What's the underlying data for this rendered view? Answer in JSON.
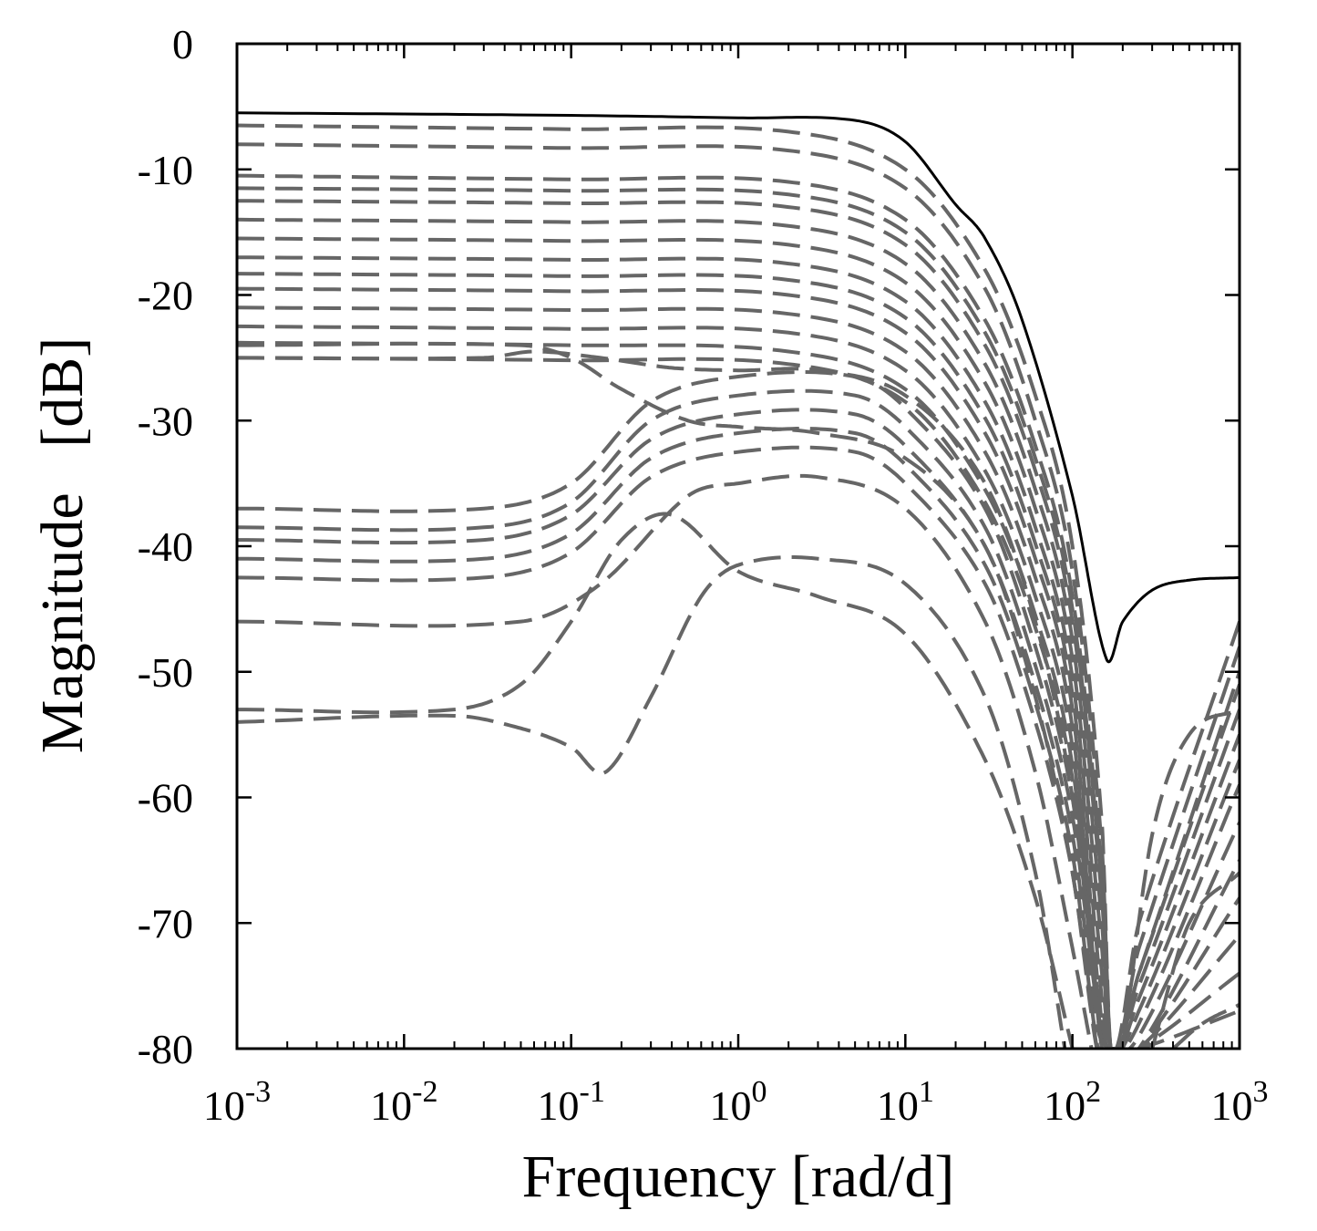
{
  "chart_data": {
    "type": "line",
    "title": "",
    "xlabel": "Frequency [rad/d]",
    "ylabel": "Magnitude   [dB]",
    "x_scale": "log",
    "xlim": [
      0.001,
      1000
    ],
    "ylim": [
      -80,
      0
    ],
    "grid": false,
    "legend": "none",
    "x_ticks": [
      {
        "value": 0.001,
        "base": "10",
        "exp": "-3"
      },
      {
        "value": 0.01,
        "base": "10",
        "exp": "-2"
      },
      {
        "value": 0.1,
        "base": "10",
        "exp": "-1"
      },
      {
        "value": 1,
        "base": "10",
        "exp": "0"
      },
      {
        "value": 10,
        "base": "10",
        "exp": "1"
      },
      {
        "value": 100,
        "base": "10",
        "exp": "2"
      },
      {
        "value": 1000,
        "base": "10",
        "exp": "3"
      }
    ],
    "y_ticks": [
      {
        "value": 0,
        "label": "0"
      },
      {
        "value": -10,
        "label": "-10"
      },
      {
        "value": -20,
        "label": "-20"
      },
      {
        "value": -30,
        "label": "-30"
      },
      {
        "value": -40,
        "label": "-40"
      },
      {
        "value": -50,
        "label": "-50"
      },
      {
        "value": -60,
        "label": "-60"
      },
      {
        "value": -70,
        "label": "-70"
      },
      {
        "value": -80,
        "label": "-80"
      }
    ],
    "colors": {
      "envelope": "#000000",
      "curves": "#666666"
    },
    "envelope": {
      "style": "solid",
      "points": [
        [
          0.001,
          -5.5
        ],
        [
          0.1,
          -5.7
        ],
        [
          1,
          -5.9
        ],
        [
          5,
          -6.1
        ],
        [
          10,
          -7.8
        ],
        [
          20,
          -12.8
        ],
        [
          30,
          -15.5
        ],
        [
          50,
          -22
        ],
        [
          100,
          -36
        ],
        [
          160,
          -49
        ],
        [
          200,
          -46
        ],
        [
          300,
          -43.5
        ],
        [
          500,
          -42.7
        ],
        [
          1000,
          -42.5
        ]
      ]
    },
    "series": [
      {
        "x": [
          0.001,
          0.1,
          2,
          10,
          30,
          60,
          100,
          150,
          170,
          250,
          1000
        ],
        "y": [
          -6.5,
          -6.8,
          -7,
          -10,
          -18,
          -28,
          -40,
          -62,
          -80,
          -70,
          -46
        ],
        "style": "dashed"
      },
      {
        "x": [
          0.001,
          0.1,
          2,
          10,
          30,
          60,
          100,
          150,
          170,
          250,
          1000
        ],
        "y": [
          -8,
          -8.3,
          -8.5,
          -11.5,
          -19.5,
          -30,
          -42,
          -64,
          -80,
          -72,
          -48
        ],
        "style": "dashed"
      },
      {
        "x": [
          0.001,
          0.1,
          2,
          10,
          30,
          60,
          100,
          150,
          170,
          250,
          1000
        ],
        "y": [
          -10.5,
          -10.8,
          -11,
          -14,
          -22,
          -32,
          -44,
          -66,
          -80,
          -74,
          -50
        ],
        "style": "dashed"
      },
      {
        "x": [
          0.001,
          0.1,
          2,
          10,
          30,
          60,
          100,
          150,
          170,
          250,
          1000
        ],
        "y": [
          -11.5,
          -11.7,
          -12,
          -15,
          -23,
          -33,
          -45,
          -67,
          -80,
          -74,
          -51
        ],
        "style": "dashed"
      },
      {
        "x": [
          0.001,
          0.1,
          2,
          10,
          30,
          60,
          100,
          150,
          170,
          250,
          1000
        ],
        "y": [
          -12.5,
          -12.7,
          -13,
          -16,
          -24,
          -34,
          -46,
          -68,
          -80,
          -75,
          -53
        ],
        "style": "dashed"
      },
      {
        "x": [
          0.001,
          0.1,
          2,
          10,
          30,
          60,
          100,
          150,
          170,
          250,
          1000
        ],
        "y": [
          -14,
          -14.2,
          -14.5,
          -17.5,
          -25.5,
          -35.5,
          -47.5,
          -70,
          -80,
          -76,
          -55
        ],
        "style": "dashed"
      },
      {
        "x": [
          0.001,
          0.1,
          2,
          10,
          30,
          60,
          100,
          150,
          170,
          250,
          1000
        ],
        "y": [
          -15.5,
          -15.7,
          -16,
          -19,
          -27,
          -37,
          -49,
          -72,
          -80,
          -77,
          -57
        ],
        "style": "dashed"
      },
      {
        "x": [
          0.001,
          0.1,
          2,
          10,
          30,
          60,
          100,
          150,
          170,
          250,
          1000
        ],
        "y": [
          -17,
          -17.2,
          -17.5,
          -20.5,
          -28.5,
          -38.5,
          -50.5,
          -74,
          -80,
          -78,
          -59
        ],
        "style": "dashed"
      },
      {
        "x": [
          0.001,
          0.1,
          2,
          10,
          30,
          60,
          100,
          150,
          170,
          250,
          1000
        ],
        "y": [
          -18.3,
          -18.5,
          -18.8,
          -21.8,
          -29.8,
          -39.8,
          -51.8,
          -76,
          -80,
          -79,
          -62
        ],
        "style": "dashed"
      },
      {
        "x": [
          0.001,
          0.1,
          2,
          10,
          30,
          60,
          100,
          150,
          170,
          250,
          1000
        ],
        "y": [
          -19.5,
          -19.7,
          -20,
          -23,
          -31,
          -41,
          -53,
          -78,
          -80,
          -80,
          -65
        ],
        "style": "dashed"
      },
      {
        "x": [
          0.001,
          0.1,
          2,
          10,
          30,
          60,
          100,
          150,
          170,
          250,
          1000
        ],
        "y": [
          -21,
          -21.2,
          -21.5,
          -24.5,
          -32.5,
          -42.5,
          -54.5,
          -80,
          -80,
          -80,
          -68
        ],
        "style": "dashed"
      },
      {
        "x": [
          0.001,
          0.1,
          2,
          10,
          30,
          60,
          100,
          150,
          170,
          250,
          1000
        ],
        "y": [
          -22.5,
          -22.7,
          -23,
          -26,
          -34,
          -44,
          -56,
          -80,
          -80,
          -80,
          -71
        ],
        "style": "dashed"
      },
      {
        "x": [
          0.001,
          0.1,
          2,
          10,
          30,
          60,
          100,
          150,
          170,
          250,
          1000
        ],
        "y": [
          -23.8,
          -24,
          -24.5,
          -27.5,
          -35.5,
          -45.5,
          -57.5,
          -80,
          -80,
          -80,
          -74
        ],
        "style": "dashed"
      },
      {
        "x": [
          0.001,
          0.1,
          2,
          10,
          30,
          60,
          100,
          150,
          170,
          250,
          1000
        ],
        "y": [
          -25,
          -25.2,
          -25.5,
          -28.5,
          -36.5,
          -46.5,
          -58.5,
          -80,
          -80,
          -80,
          -77
        ],
        "style": "dashed"
      },
      {
        "x": [
          0.001,
          0.03,
          0.1,
          0.3,
          1,
          5,
          10,
          30,
          60,
          100,
          140,
          160
        ],
        "y": [
          -37,
          -37,
          -35,
          -28.5,
          -26.5,
          -26.5,
          -29,
          -37,
          -48,
          -60,
          -75,
          -80
        ],
        "style": "dashed"
      },
      {
        "x": [
          0.001,
          0.03,
          0.1,
          0.3,
          1,
          5,
          10,
          30,
          60,
          100,
          140,
          160
        ],
        "y": [
          -38.5,
          -38.5,
          -36.5,
          -30,
          -28,
          -28,
          -30.5,
          -38.5,
          -49.5,
          -61.5,
          -76.5,
          -80
        ],
        "style": "dashed"
      },
      {
        "x": [
          0.001,
          0.03,
          0.1,
          0.3,
          1,
          5,
          10,
          30,
          60,
          100,
          140,
          160
        ],
        "y": [
          -39.5,
          -39.5,
          -37.5,
          -31.5,
          -29.5,
          -29.5,
          -32,
          -40,
          -51,
          -63,
          -78,
          -80
        ],
        "style": "dashed"
      },
      {
        "x": [
          0.001,
          0.03,
          0.1,
          0.3,
          1,
          5,
          10,
          30,
          60,
          100,
          140,
          160
        ],
        "y": [
          -41,
          -41,
          -39,
          -33,
          -31,
          -31,
          -33.5,
          -41.5,
          -52.5,
          -64.5,
          -79.5,
          -80
        ],
        "style": "dashed"
      },
      {
        "x": [
          0.001,
          0.03,
          0.1,
          0.3,
          1,
          5,
          10,
          30,
          60,
          100,
          140,
          160
        ],
        "y": [
          -42.5,
          -42.5,
          -40.5,
          -34.5,
          -32.5,
          -32.5,
          -35,
          -43,
          -54,
          -66,
          -80,
          -80
        ],
        "style": "dashed"
      },
      {
        "x": [
          0.001,
          0.05,
          0.15,
          0.5,
          1,
          3,
          10,
          30,
          60,
          100,
          130
        ],
        "y": [
          -46,
          -46,
          -43,
          -36,
          -35,
          -34.5,
          -37,
          -46,
          -58,
          -72,
          -80
        ],
        "style": "dashed"
      },
      {
        "x": [
          0.001,
          0.02,
          0.05,
          0.1,
          0.2,
          0.4,
          1,
          3,
          10,
          30,
          60,
          100
        ],
        "y": [
          -53,
          -53,
          -51,
          -46,
          -39.5,
          -37.5,
          -42,
          -44,
          -47,
          -57,
          -68,
          -80
        ],
        "style": "dashed"
      },
      {
        "x": [
          0.001,
          0.02,
          0.05,
          0.1,
          0.16,
          0.3,
          0.6,
          1,
          3,
          10,
          30,
          60,
          90
        ],
        "y": [
          -54,
          -53.5,
          -54.5,
          -56,
          -58,
          -52,
          -44,
          -41.5,
          -41,
          -43,
          -52,
          -66,
          -80
        ],
        "style": "dashed"
      },
      {
        "x": [
          0.001,
          0.05,
          0.1,
          0.2,
          0.5,
          1,
          3,
          10,
          30,
          60,
          100,
          140
        ],
        "y": [
          -24,
          -24,
          -25,
          -27.5,
          -30,
          -30.5,
          -31,
          -33,
          -40,
          -52,
          -66,
          -80
        ],
        "style": "dashed"
      },
      {
        "x": [
          0.001,
          0.03,
          0.06,
          0.15,
          0.4,
          1,
          3,
          10,
          30,
          60,
          100,
          150
        ],
        "y": [
          -25,
          -25,
          -24.5,
          -25,
          -25.8,
          -26,
          -26,
          -28,
          -35,
          -46,
          -60,
          -80
        ],
        "style": "dashed"
      },
      {
        "x": [
          200,
          300,
          500,
          1000
        ],
        "y": [
          -80,
          -63,
          -55,
          -53
        ],
        "style": "dashed"
      },
      {
        "x": [
          300,
          500,
          1000
        ],
        "y": [
          -80,
          -70,
          -66
        ],
        "style": "dashed"
      },
      {
        "x": [
          400,
          600,
          1000
        ],
        "y": [
          -80,
          -78,
          -76.5
        ],
        "style": "dashed"
      }
    ]
  }
}
